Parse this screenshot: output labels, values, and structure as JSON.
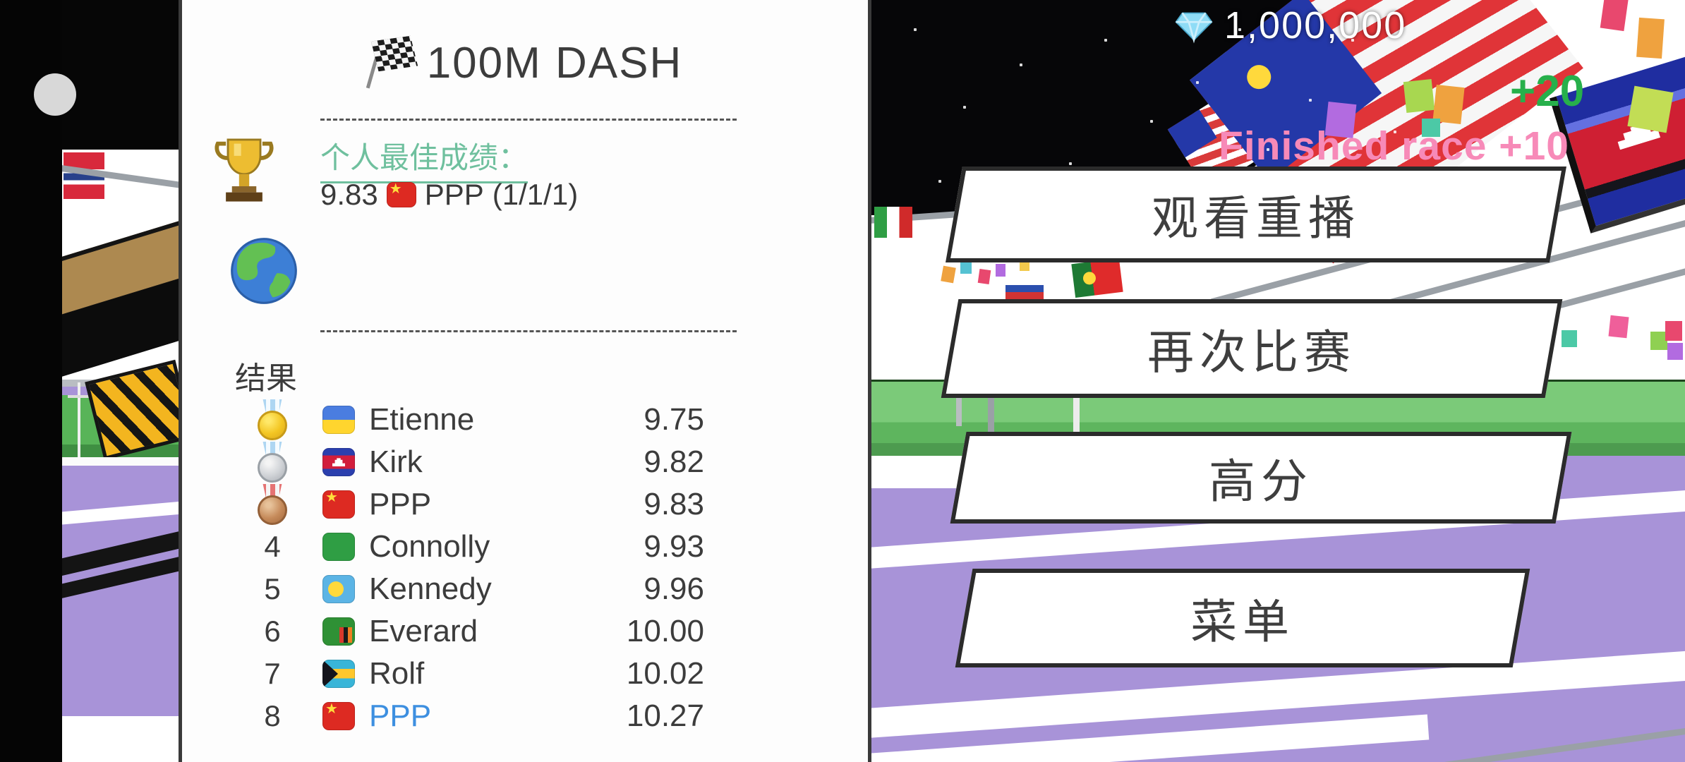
{
  "panel": {
    "title": "100M DASH",
    "title_icon": "checkered-flag",
    "personal_best": {
      "icon": "trophy",
      "label": "个人最佳成绩：",
      "time": "9.83",
      "flag": "china",
      "name": "PPP",
      "detail": "(1/1/1)"
    },
    "world_icon": "globe",
    "results_label": "结果",
    "leaderboard": [
      {
        "rank": "1",
        "medal": "gold",
        "flag": "ukraine",
        "name": "Etienne",
        "time": "9.75",
        "highlight": false
      },
      {
        "rank": "2",
        "medal": "silver",
        "flag": "cambodia",
        "name": "Kirk",
        "time": "9.82",
        "highlight": false
      },
      {
        "rank": "3",
        "medal": "bronze",
        "flag": "china",
        "name": "PPP",
        "time": "9.83",
        "highlight": false
      },
      {
        "rank": "4",
        "medal": null,
        "flag": "seychelles",
        "name": "Connolly",
        "time": "9.93",
        "highlight": false
      },
      {
        "rank": "5",
        "medal": null,
        "flag": "palau",
        "name": "Kennedy",
        "time": "9.96",
        "highlight": false
      },
      {
        "rank": "6",
        "medal": null,
        "flag": "zambia",
        "name": "Everard",
        "time": "10.00",
        "highlight": false
      },
      {
        "rank": "7",
        "medal": null,
        "flag": "bahamas",
        "name": "Rolf",
        "time": "10.02",
        "highlight": false
      },
      {
        "rank": "8",
        "medal": null,
        "flag": "china",
        "name": "PPP",
        "time": "10.27",
        "highlight": true
      }
    ]
  },
  "hud": {
    "gem_icon": "diamond",
    "gems": "1,000,000",
    "reward": "+20",
    "race_reward": "Finished race +10"
  },
  "menu_buttons": [
    {
      "id": "watch-replay",
      "label": "观看重播"
    },
    {
      "id": "race-again",
      "label": "再次比赛"
    },
    {
      "id": "high-score",
      "label": "高分"
    },
    {
      "id": "menu",
      "label": "菜单"
    }
  ],
  "colors": {
    "accent_green": "#6fc09e",
    "highlight_blue": "#3d8fe0",
    "reward_green": "#27b04b",
    "race_reward_pink": "#f78ab8",
    "track_purple": "#a893d8",
    "field_green": "#5eb55e",
    "sky_black": "#060608"
  }
}
